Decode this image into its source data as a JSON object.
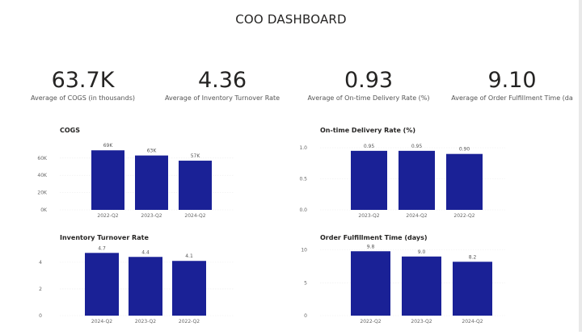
{
  "page": {
    "title": "COO DASHBOARD"
  },
  "kpis": [
    {
      "value": "63.7K",
      "label": "Average of COGS (in thousands)"
    },
    {
      "value": "4.36",
      "label": "Average of Inventory Turnover Rate"
    },
    {
      "value": "0.93",
      "label": "Average of On-time Delivery Rate (%)"
    },
    {
      "value": "9.10",
      "label": "Average of Order Fulfillment Time (da"
    }
  ],
  "colors": {
    "bar": "#1a2196",
    "grid": "#eeeeee",
    "text": "#252423"
  },
  "chart_data": [
    {
      "type": "bar",
      "title": "COGS",
      "categories": [
        "2022-Q2",
        "2023-Q2",
        "2024-Q2"
      ],
      "values": [
        69,
        63,
        57
      ],
      "data_labels": [
        "69K",
        "63K",
        "57K"
      ],
      "yticks": [
        "0K",
        "20K",
        "40K",
        "60K"
      ],
      "ytick_values": [
        0,
        20,
        40,
        60
      ],
      "ylim": [
        0,
        72
      ],
      "grid": true,
      "xlabel": "",
      "ylabel": ""
    },
    {
      "type": "bar",
      "title": "On-time Delivery Rate (%)",
      "categories": [
        "2023-Q2",
        "2024-Q2",
        "2022-Q2"
      ],
      "values": [
        0.95,
        0.95,
        0.9
      ],
      "data_labels": [
        "0.95",
        "0.95",
        "0.90"
      ],
      "yticks": [
        "0.0",
        "0.5",
        "1.0"
      ],
      "ytick_values": [
        0,
        0.5,
        1.0
      ],
      "ylim": [
        0,
        1.0
      ],
      "grid": true,
      "xlabel": "",
      "ylabel": ""
    },
    {
      "type": "bar",
      "title": "Inventory Turnover Rate",
      "categories": [
        "2024-Q2",
        "2023-Q2",
        "2022-Q2"
      ],
      "values": [
        4.7,
        4.4,
        4.1
      ],
      "data_labels": [
        "4.7",
        "4.4",
        "4.1"
      ],
      "yticks": [
        "0",
        "2",
        "4"
      ],
      "ytick_values": [
        0,
        2,
        4
      ],
      "ylim": [
        0,
        4.9
      ],
      "grid": true,
      "xlabel": "",
      "ylabel": ""
    },
    {
      "type": "bar",
      "title": "Order Fulfillment Time (days)",
      "categories": [
        "2022-Q2",
        "2023-Q2",
        "2024-Q2"
      ],
      "values": [
        9.8,
        9.0,
        8.2
      ],
      "data_labels": [
        "9.8",
        "9.0",
        "8.2"
      ],
      "yticks": [
        "0",
        "5",
        "10"
      ],
      "ytick_values": [
        0,
        5,
        10
      ],
      "ylim": [
        0,
        10.2
      ],
      "grid": true,
      "xlabel": "",
      "ylabel": ""
    }
  ]
}
